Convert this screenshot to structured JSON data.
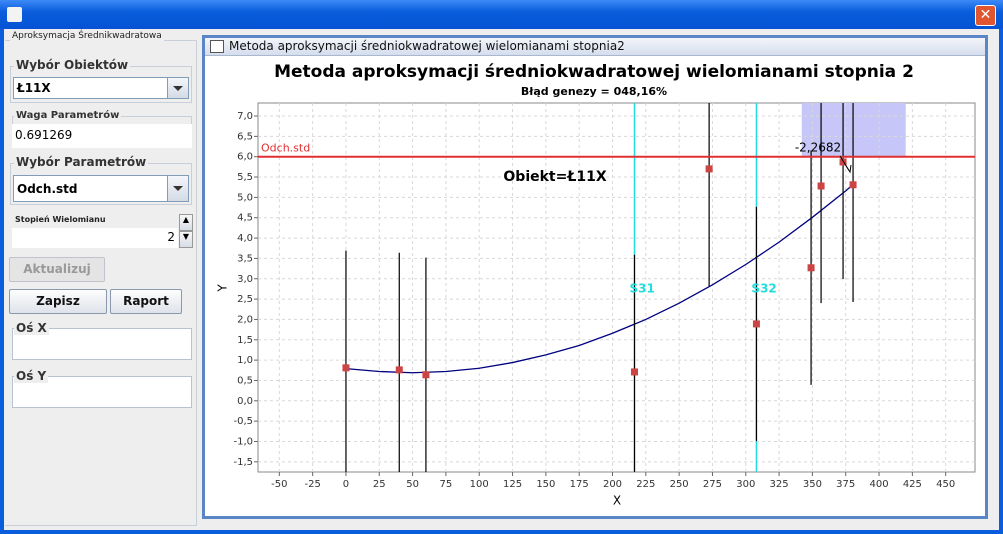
{
  "window": {
    "left_panel": {
      "title": "Aproksymacja Średnikwadratowa",
      "objects_label": "Wybór Obiektów",
      "objects_value": "Ł11X",
      "weight_label": "Waga Parametrów",
      "weight_value": "0.691269",
      "params_label": "Wybór Parametrów",
      "params_value": "Odch.std",
      "degree_label": "Stopień Wielomianu",
      "degree_value": "2",
      "update_button": "Aktualizuj",
      "save_button": "Zapisz",
      "report_button": "Raport",
      "axis_x_label": "Oś X",
      "axis_y_label": "Oś Y"
    },
    "frame_title": "Metoda aproksymacji średniokwadratowej wielomianami stopnia2"
  },
  "chart_data": {
    "type": "scatter",
    "title": "Metoda aproksymacji średniokwadratowej wielomianami stopnia 2",
    "subtitle": "Błąd genezy = 048,16%",
    "xlabel": "X",
    "ylabel": "Y",
    "xlim": [
      -66,
      472
    ],
    "ylim": [
      -1.75,
      7.32
    ],
    "xticks": [
      -50,
      -25,
      0,
      25,
      50,
      75,
      100,
      125,
      150,
      175,
      200,
      225,
      250,
      275,
      300,
      325,
      350,
      375,
      400,
      425,
      450
    ],
    "yticks": [
      {
        "value": -1.5,
        "label": "-1,5"
      },
      {
        "value": -1,
        "label": "-1,0"
      },
      {
        "value": -0.5,
        "label": "-0,5"
      },
      {
        "value": 0,
        "label": "0,0"
      },
      {
        "value": 0.5,
        "label": "0,5"
      },
      {
        "value": 1,
        "label": "1,0"
      },
      {
        "value": 1.5,
        "label": "1,5"
      },
      {
        "value": 2,
        "label": "2,0"
      },
      {
        "value": 2.5,
        "label": "2,5"
      },
      {
        "value": 3,
        "label": "3,0"
      },
      {
        "value": 3.5,
        "label": "3,5"
      },
      {
        "value": 4,
        "label": "4,0"
      },
      {
        "value": 4.5,
        "label": "4,5"
      },
      {
        "value": 5,
        "label": "5,0"
      },
      {
        "value": 5.5,
        "label": "5,5"
      },
      {
        "value": 6,
        "label": "6,0"
      },
      {
        "value": 6.5,
        "label": "6,5"
      },
      {
        "value": 7,
        "label": "7,0"
      }
    ],
    "grid": true,
    "highlight": {
      "x": [
        342,
        420
      ],
      "y": [
        6,
        7.32
      ],
      "color": "#c6c6f8"
    },
    "series": [
      {
        "type": "scatter",
        "color": "#cc4444",
        "error_color": "#000000",
        "x": [
          0,
          40,
          60,
          216.5,
          272.5,
          308,
          349,
          356.5,
          373,
          380.5
        ],
        "values": [
          0.81,
          0.76,
          0.64,
          0.71,
          5.7,
          1.89,
          3.27,
          5.28,
          5.87,
          5.31
        ],
        "errors": [
          2.88,
          2.88,
          2.88,
          2.88,
          2.88,
          2.88,
          2.88,
          2.88,
          2.88,
          2.88
        ]
      },
      {
        "type": "line",
        "color": "#000080",
        "x": [
          0,
          25,
          50,
          75,
          100,
          125,
          150,
          175,
          200,
          225,
          250,
          275,
          300,
          325,
          350,
          375,
          380
        ],
        "values": [
          0.79,
          0.72,
          0.69,
          0.72,
          0.8,
          0.94,
          1.13,
          1.36,
          1.66,
          2.0,
          2.4,
          2.85,
          3.35,
          3.9,
          4.51,
          5.16,
          5.3
        ]
      }
    ],
    "hlines": [
      {
        "value": 6,
        "label": "Odch.std",
        "color": "#e03030"
      }
    ],
    "vlines": [
      {
        "value": 216.5,
        "label": "S31",
        "color": "#22dddd"
      },
      {
        "value": 308,
        "label": "S32",
        "color": "#22dddd"
      }
    ],
    "annotations": [
      {
        "text": "Obiekt=Ł11X"
      },
      {
        "text": "-2,2682"
      }
    ]
  }
}
